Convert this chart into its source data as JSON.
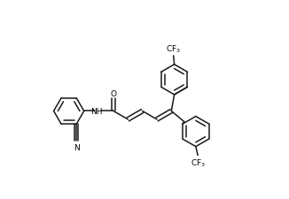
{
  "bg_color": "#ffffff",
  "bond_color": "#1a1a1a",
  "bond_lw": 1.1,
  "text_color": "#000000",
  "font_size": 6.5,
  "xlim": [
    -0.5,
    5.5
  ],
  "ylim": [
    -2.2,
    2.8
  ]
}
